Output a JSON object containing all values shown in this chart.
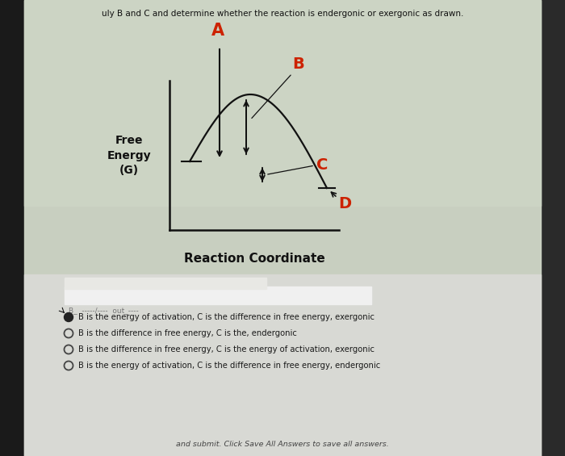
{
  "bg_main": "#c8cfc0",
  "bg_light": "#d0d8c8",
  "bg_dark_left": "#1a1a1a",
  "bg_bottom": "#dcddd8",
  "title_text": "uly B and C and determine whether the reaction is endergonic or exergonic as drawn.",
  "ylabel": "Free\nEnergy\n(G)",
  "xlabel": "Reaction Coordinate",
  "label_A": "A",
  "label_B": "B",
  "label_C": "C",
  "label_D": "D",
  "red": "#cc2200",
  "black": "#111111",
  "option1": "B is the energy of activation, C is the difference in free energy, exergonic",
  "option2": "B is the difference in free energy, C is the, endergonic",
  "option3": "B is the difference in free energy, C is the energy of activation, exergonic",
  "option4": "B is the energy of activation, C is the difference in free energy, endergonic",
  "bottom_text": "and submit. Click Save All Answers to save all answers."
}
